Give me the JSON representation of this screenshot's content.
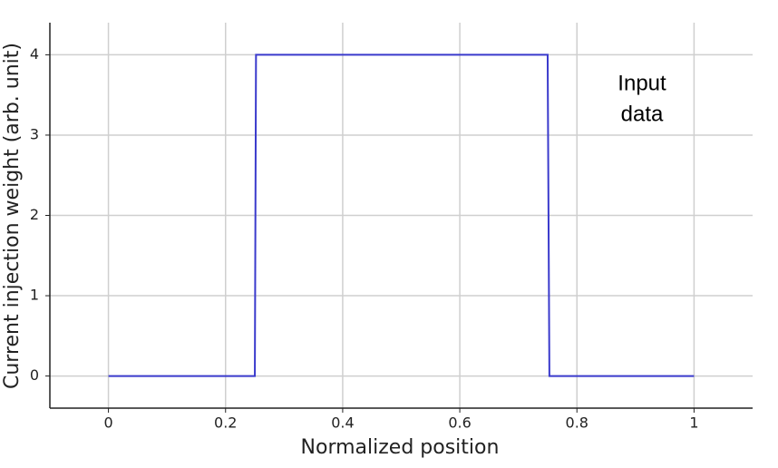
{
  "chart_data": {
    "type": "line",
    "x_label": "Normalized position",
    "y_label": "Current injection weight (arb. unit)",
    "annotation": [
      "Input",
      "data"
    ],
    "series": [
      {
        "color": "#3a3acc",
        "x": [
          0,
          0.25,
          0.252,
          0.75,
          0.753,
          1
        ],
        "values": [
          0,
          0,
          4,
          4,
          0,
          0
        ]
      }
    ],
    "xlim": [
      -0.1,
      1.1
    ],
    "xticks": [
      0,
      0.2,
      0.4,
      0.6,
      0.8,
      1
    ],
    "ylim": [
      -0.4,
      4.4
    ],
    "yticks": [
      0,
      1,
      2,
      3,
      4
    ],
    "grid": true
  }
}
